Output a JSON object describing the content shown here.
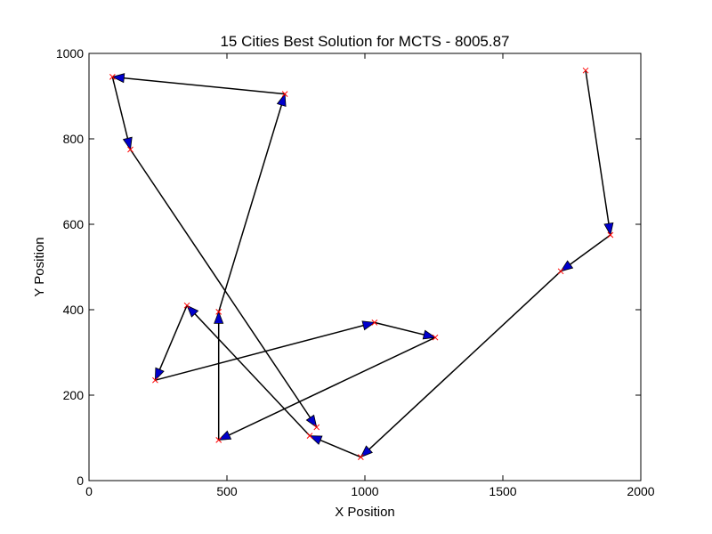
{
  "chart_data": {
    "type": "line",
    "title": "15 Cities Best Solution for MCTS - 8005.87",
    "xlabel": "X Position",
    "ylabel": "Y Position",
    "xlim": [
      0,
      2000
    ],
    "ylim": [
      0,
      1000
    ],
    "xticks": [
      0,
      500,
      1000,
      1500,
      2000
    ],
    "yticks": [
      0,
      200,
      400,
      600,
      800,
      1000
    ],
    "grid": false,
    "colors": {
      "path": "#000000",
      "arrow": "#0000cc",
      "marker": "#ff0000"
    },
    "tour": [
      {
        "x": 1800,
        "y": 960
      },
      {
        "x": 1890,
        "y": 575
      },
      {
        "x": 1710,
        "y": 490
      },
      {
        "x": 985,
        "y": 55
      },
      {
        "x": 800,
        "y": 105
      },
      {
        "x": 355,
        "y": 410
      },
      {
        "x": 240,
        "y": 235
      },
      {
        "x": 1035,
        "y": 370
      },
      {
        "x": 1255,
        "y": 335
      },
      {
        "x": 470,
        "y": 95
      },
      {
        "x": 470,
        "y": 395
      },
      {
        "x": 710,
        "y": 905
      },
      {
        "x": 85,
        "y": 945
      },
      {
        "x": 150,
        "y": 775
      },
      {
        "x": 825,
        "y": 125
      }
    ]
  }
}
